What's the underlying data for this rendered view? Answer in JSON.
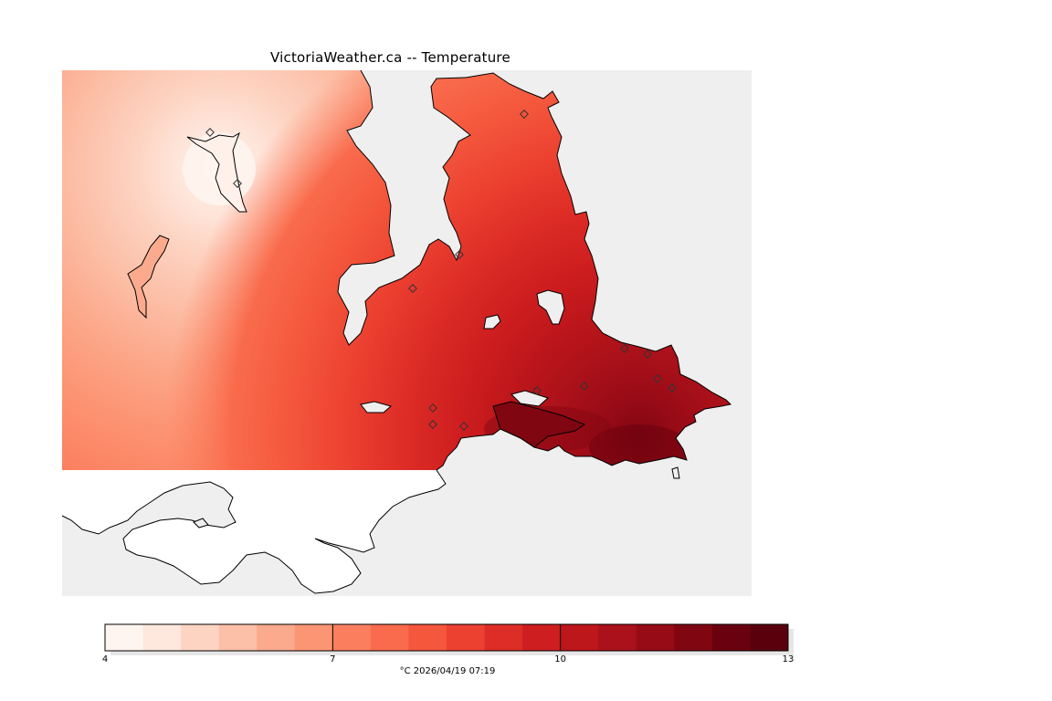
{
  "title": "VictoriaWeather.ca -- Temperature",
  "legend": {
    "min": 4,
    "max": 13,
    "steps": 18,
    "tick_labels": [
      "4",
      "7",
      "10",
      "13"
    ],
    "tick_values": [
      4,
      7,
      10,
      13
    ],
    "caption": "°C  2026/04/19 07:19",
    "colors": [
      "#fff5f0",
      "#fee7dc",
      "#fdd4c2",
      "#fcbfa7",
      "#fcaa8d",
      "#fc9574",
      "#fb7f5f",
      "#f96b4c",
      "#f4573c",
      "#ec4131",
      "#de2d26",
      "#ce1e1f",
      "#bd161b",
      "#ab111a",
      "#970b16",
      "#800612",
      "#6a010f",
      "#5a000d"
    ]
  },
  "stations": [
    {
      "label": "",
      "value": null
    },
    {
      "label": "",
      "value": null
    }
  ]
}
